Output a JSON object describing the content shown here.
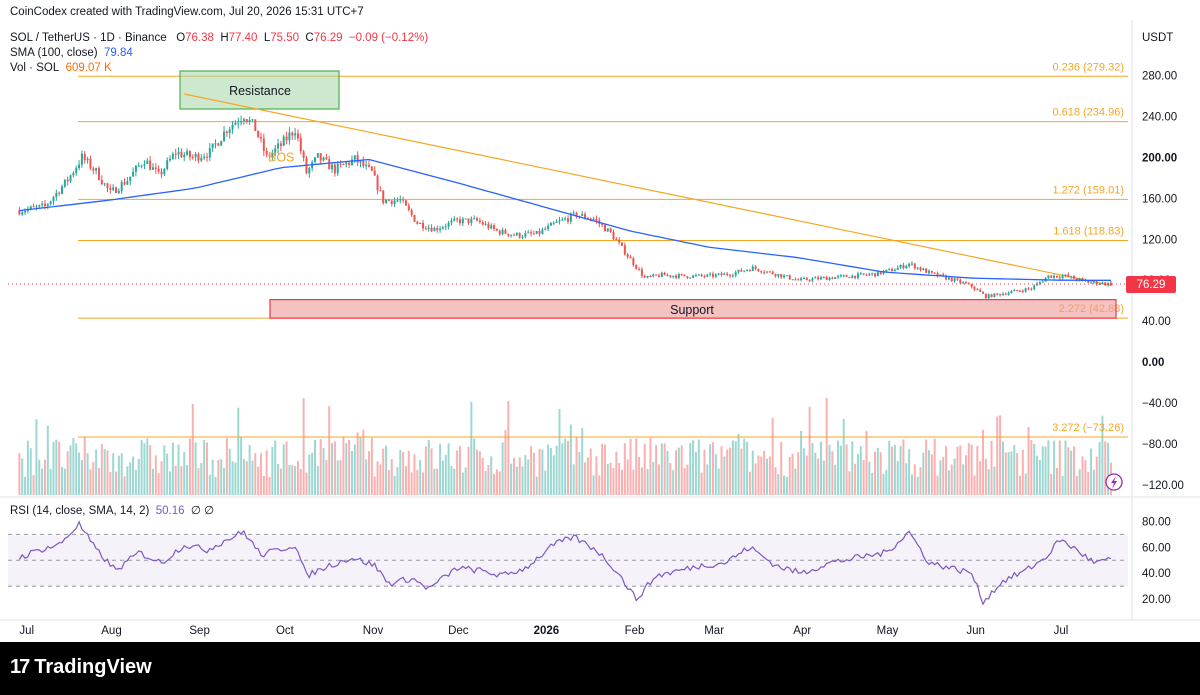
{
  "header": {
    "created": "CoinCodex created with TradingView.com, Jul 20, 2026 15:31 UTC+7",
    "symbol": "SOL / TetherUS · 1D · Binance",
    "ohlc": {
      "o_label": "O",
      "o": "76.38",
      "h_label": "H",
      "h": "77.40",
      "l_label": "L",
      "l": "75.50",
      "c_label": "C",
      "c": "76.29",
      "change": "−0.09 (−0.12%)"
    },
    "sma_label": "SMA (100, close)",
    "sma_value": "79.84",
    "vol_label": "Vol · SOL",
    "vol_value": "609.07 K",
    "rsi_label": "RSI (14, close, SMA, 14, 2)",
    "rsi_value": "50.16",
    "rsi_extra": "∅ ∅",
    "currency": "USDT"
  },
  "colors": {
    "up": "#26a69a",
    "down": "#ef5350",
    "sma": "#2962ff",
    "fib": "#f5a623",
    "rsi": "#7e57c2",
    "resistance": "#4caf50",
    "support": "#f23645",
    "price_tag": "#f23645"
  },
  "chart_data": {
    "type": "candlestick",
    "symbol": "SOL/USDT",
    "x_labels": [
      "Jul",
      "Aug",
      "Sep",
      "Oct",
      "Nov",
      "Dec",
      "2026",
      "Feb",
      "Mar",
      "Apr",
      "May",
      "Jun",
      "Jul"
    ],
    "y_ticks": [
      "280.00",
      "240.00",
      "200.00",
      "160.00",
      "120.00",
      "80.00",
      "40.00",
      "0.00",
      "−40.00",
      "−80.00",
      "−120.00"
    ],
    "ylim": [
      -130,
      305
    ],
    "fib_levels": [
      {
        "label": "0.236 (279.32)",
        "value": 279.32
      },
      {
        "label": "0.618 (234.96)",
        "value": 234.96
      },
      {
        "label": "1.272 (159.01)",
        "value": 159.01
      },
      {
        "label": "1.618 (118.83)",
        "value": 118.83
      },
      {
        "label": "2.272 (42.88)",
        "value": 42.88
      },
      {
        "label": "3.272 (−73.26)",
        "value": -73.26
      }
    ],
    "resistance_label": "Resistance",
    "support_label": "Support",
    "bos_label": "BOS",
    "last_price": "76.29",
    "price_path": [
      [
        "2025-07-01",
        148
      ],
      [
        "2025-07-10",
        152
      ],
      [
        "2025-07-18",
        178
      ],
      [
        "2025-07-23",
        200
      ],
      [
        "2025-07-28",
        186
      ],
      [
        "2025-08-02",
        165
      ],
      [
        "2025-08-08",
        178
      ],
      [
        "2025-08-14",
        198
      ],
      [
        "2025-08-19",
        182
      ],
      [
        "2025-08-25",
        205
      ],
      [
        "2025-08-31",
        200
      ],
      [
        "2025-09-06",
        205
      ],
      [
        "2025-09-12",
        228
      ],
      [
        "2025-09-18",
        242
      ],
      [
        "2025-09-22",
        228
      ],
      [
        "2025-09-26",
        200
      ],
      [
        "2025-10-01",
        212
      ],
      [
        "2025-10-06",
        228
      ],
      [
        "2025-10-10",
        185
      ],
      [
        "2025-10-14",
        200
      ],
      [
        "2025-10-20",
        188
      ],
      [
        "2025-10-27",
        198
      ],
      [
        "2025-11-02",
        185
      ],
      [
        "2025-11-06",
        158
      ],
      [
        "2025-11-12",
        158
      ],
      [
        "2025-11-18",
        136
      ],
      [
        "2025-11-24",
        130
      ],
      [
        "2025-12-02",
        138
      ],
      [
        "2025-12-09",
        138
      ],
      [
        "2025-12-16",
        128
      ],
      [
        "2025-12-23",
        124
      ],
      [
        "2025-12-30",
        125
      ],
      [
        "2026-01-06",
        136
      ],
      [
        "2026-01-13",
        144
      ],
      [
        "2026-01-19",
        140
      ],
      [
        "2026-01-25",
        126
      ],
      [
        "2026-01-31",
        104
      ],
      [
        "2026-02-06",
        82
      ],
      [
        "2026-02-12",
        85
      ],
      [
        "2026-02-20",
        84
      ],
      [
        "2026-02-28",
        84
      ],
      [
        "2026-03-08",
        86
      ],
      [
        "2026-03-16",
        92
      ],
      [
        "2026-03-24",
        86
      ],
      [
        "2026-04-01",
        80
      ],
      [
        "2026-04-10",
        82
      ],
      [
        "2026-04-20",
        84
      ],
      [
        "2026-04-28",
        86
      ],
      [
        "2026-05-04",
        90
      ],
      [
        "2026-05-10",
        96
      ],
      [
        "2026-05-18",
        86
      ],
      [
        "2026-05-26",
        80
      ],
      [
        "2026-06-01",
        74
      ],
      [
        "2026-06-06",
        64
      ],
      [
        "2026-06-14",
        68
      ],
      [
        "2026-06-22",
        72
      ],
      [
        "2026-06-28",
        84
      ],
      [
        "2026-07-04",
        84
      ],
      [
        "2026-07-12",
        78
      ],
      [
        "2026-07-20",
        76.29
      ]
    ],
    "sma_path": [
      [
        "2025-07-01",
        148
      ],
      [
        "2025-08-01",
        158
      ],
      [
        "2025-09-01",
        170
      ],
      [
        "2025-10-01",
        190
      ],
      [
        "2025-11-01",
        198
      ],
      [
        "2025-12-01",
        176
      ],
      [
        "2026-01-01",
        152
      ],
      [
        "2026-02-01",
        128
      ],
      [
        "2026-03-01",
        112
      ],
      [
        "2026-04-01",
        102
      ],
      [
        "2026-05-01",
        88
      ],
      [
        "2026-06-01",
        82
      ],
      [
        "2026-07-01",
        80
      ],
      [
        "2026-07-20",
        79.84
      ]
    ],
    "trendline": [
      [
        "2025-08-28",
        262
      ],
      [
        "2026-07-20",
        75
      ]
    ],
    "rsi": {
      "y_ticks": [
        "80.00",
        "60.00",
        "40.00",
        "20.00"
      ],
      "ylim": [
        10,
        85
      ],
      "bands": [
        70,
        50,
        30
      ],
      "last": 50.16,
      "path": [
        [
          "2025-07-01",
          52
        ],
        [
          "2025-07-08",
          58
        ],
        [
          "2025-07-15",
          62
        ],
        [
          "2025-07-22",
          78
        ],
        [
          "2025-07-28",
          58
        ],
        [
          "2025-08-04",
          42
        ],
        [
          "2025-08-12",
          56
        ],
        [
          "2025-08-20",
          48
        ],
        [
          "2025-08-28",
          62
        ],
        [
          "2025-09-05",
          58
        ],
        [
          "2025-09-12",
          66
        ],
        [
          "2025-09-18",
          72
        ],
        [
          "2025-09-24",
          54
        ],
        [
          "2025-09-30",
          58
        ],
        [
          "2025-10-06",
          62
        ],
        [
          "2025-10-10",
          38
        ],
        [
          "2025-10-18",
          46
        ],
        [
          "2025-10-26",
          52
        ],
        [
          "2025-11-03",
          46
        ],
        [
          "2025-11-08",
          32
        ],
        [
          "2025-11-16",
          36
        ],
        [
          "2025-11-22",
          28
        ],
        [
          "2025-12-02",
          44
        ],
        [
          "2025-12-10",
          42
        ],
        [
          "2025-12-18",
          38
        ],
        [
          "2025-12-26",
          44
        ],
        [
          "2026-01-05",
          62
        ],
        [
          "2026-01-12",
          68
        ],
        [
          "2026-01-20",
          58
        ],
        [
          "2026-01-27",
          42
        ],
        [
          "2026-02-03",
          20
        ],
        [
          "2026-02-10",
          38
        ],
        [
          "2026-02-18",
          42
        ],
        [
          "2026-02-26",
          46
        ],
        [
          "2026-03-06",
          48
        ],
        [
          "2026-03-15",
          60
        ],
        [
          "2026-03-24",
          46
        ],
        [
          "2026-04-02",
          40
        ],
        [
          "2026-04-12",
          48
        ],
        [
          "2026-04-22",
          52
        ],
        [
          "2026-05-02",
          56
        ],
        [
          "2026-05-10",
          72
        ],
        [
          "2026-05-17",
          48
        ],
        [
          "2026-05-25",
          44
        ],
        [
          "2026-06-01",
          40
        ],
        [
          "2026-06-05",
          18
        ],
        [
          "2026-06-12",
          34
        ],
        [
          "2026-06-20",
          42
        ],
        [
          "2026-06-27",
          52
        ],
        [
          "2026-07-02",
          66
        ],
        [
          "2026-07-08",
          58
        ],
        [
          "2026-07-14",
          48
        ],
        [
          "2026-07-20",
          50.16
        ]
      ]
    }
  },
  "watermark": "TradingView"
}
